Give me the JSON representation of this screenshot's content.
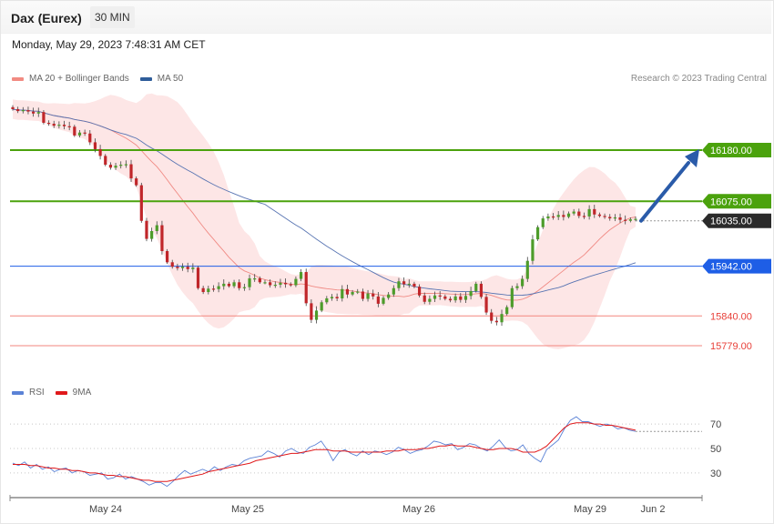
{
  "header": {
    "title": "Dax (Eurex)",
    "interval": "30 MIN"
  },
  "timestamp": "Monday, May 29, 2023 7:48:31 AM CET",
  "legend_main": [
    {
      "label": "MA 20 + Bollinger Bands",
      "color": "#f28b82"
    },
    {
      "label": "MA 50",
      "color": "#2f5d9a"
    }
  ],
  "legend_rsi": [
    {
      "label": "RSI",
      "color": "#5b82d6"
    },
    {
      "label": "9MA",
      "color": "#e0191b"
    }
  ],
  "copyright": "Research © 2023 Trading Central",
  "colors": {
    "green": "#4ba20d",
    "red": "#e8413a",
    "blue": "#1e5ee6",
    "dark": "#2b2b2b",
    "bull": "#4d9c2a",
    "bear": "#c0262a"
  },
  "chart_data": [
    {
      "type": "candlestick",
      "ylim": [
        15700,
        16250
      ],
      "x_labels": [
        "May 24",
        "May 25",
        "May 26",
        "May 29",
        "Jun 2"
      ],
      "levels": [
        {
          "label": "16180.00",
          "value": 16180,
          "style": "resistance"
        },
        {
          "label": "16075.00",
          "value": 16075,
          "style": "resistance"
        },
        {
          "label": "16035.00",
          "value": 16035,
          "style": "last"
        },
        {
          "label": "15942.00",
          "value": 15942,
          "style": "pivot"
        },
        {
          "label": "15840.00",
          "value": 15840,
          "style": "support"
        },
        {
          "label": "15779.00",
          "value": 15779,
          "style": "support"
        }
      ],
      "close": [
        16264,
        16260,
        16262,
        16259,
        16255,
        16258,
        16236,
        16234,
        16230,
        16232,
        16229,
        16228,
        16210,
        16216,
        16214,
        16196,
        16182,
        16168,
        16150,
        16144,
        16148,
        16150,
        16151,
        16122,
        16108,
        16035,
        15998,
        16014,
        16026,
        15973,
        15950,
        15941,
        15938,
        15941,
        15936,
        15939,
        15897,
        15889,
        15896,
        15895,
        15901,
        15906,
        15901,
        15909,
        15897,
        15899,
        15917,
        15917,
        15909,
        15909,
        15903,
        15904,
        15908,
        15905,
        15903,
        15916,
        15930,
        15866,
        15832,
        15851,
        15868,
        15876,
        15879,
        15876,
        15895,
        15884,
        15889,
        15890,
        15875,
        15886,
        15880,
        15865,
        15877,
        15884,
        15897,
        15911,
        15905,
        15906,
        15900,
        15882,
        15869,
        15875,
        15882,
        15880,
        15875,
        15872,
        15880,
        15873,
        15881,
        15891,
        15906,
        15879,
        15847,
        15830,
        15827,
        15844,
        15858,
        15897,
        15901,
        15916,
        15953,
        15997,
        16022,
        16040,
        16044,
        16043,
        16047,
        16043,
        16050,
        16054,
        16045,
        16044,
        16059,
        16048,
        16045,
        16043,
        16040,
        16042,
        16037,
        16035,
        16038,
        16039
      ]
    },
    {
      "type": "line",
      "title": "RSI",
      "ylim": [
        15,
        85
      ],
      "y_ticks": [
        30,
        50,
        70
      ],
      "series": [
        {
          "name": "RSI",
          "values": [
            38,
            36,
            39,
            34,
            37,
            33,
            35,
            31,
            33,
            34,
            30,
            32,
            31,
            28,
            29,
            30,
            25,
            26,
            29,
            25,
            27,
            25,
            23,
            20,
            22,
            22,
            19,
            23,
            28,
            32,
            29,
            31,
            33,
            31,
            35,
            32,
            35,
            37,
            36,
            40,
            42,
            43,
            44,
            48,
            46,
            43,
            48,
            50,
            47,
            46,
            51,
            53,
            56,
            49,
            40,
            47,
            49,
            46,
            44,
            48,
            45,
            48,
            47,
            45,
            47,
            51,
            49,
            46,
            48,
            49,
            52,
            56,
            55,
            53,
            54,
            49,
            51,
            54,
            53,
            50,
            48,
            52,
            57,
            51,
            48,
            49,
            53,
            46,
            42,
            39,
            49,
            53,
            57,
            66,
            73,
            76,
            72,
            72,
            70,
            68,
            70,
            69,
            66,
            67,
            65,
            64
          ]
        },
        {
          "name": "9MA",
          "values": [
            37,
            37,
            37,
            36,
            36,
            35,
            34,
            34,
            33,
            33,
            32,
            32,
            31,
            30,
            30,
            29,
            28,
            28,
            27,
            27,
            26,
            25,
            24,
            24,
            23,
            23,
            23,
            24,
            25,
            26,
            27,
            28,
            29,
            31,
            32,
            33,
            34,
            35,
            36,
            37,
            38,
            40,
            41,
            42,
            43,
            44,
            45,
            46,
            46,
            47,
            48,
            49,
            49,
            49,
            48,
            48,
            48,
            47,
            47,
            47,
            47,
            47,
            47,
            48,
            48,
            48,
            49,
            49,
            49,
            50,
            50,
            51,
            52,
            52,
            53,
            52,
            52,
            52,
            51,
            50,
            49,
            49,
            50,
            50,
            50,
            49,
            47,
            47,
            47,
            49,
            52,
            57,
            62,
            67,
            70,
            71,
            71,
            71,
            70,
            70,
            69,
            69,
            68,
            67,
            66,
            65
          ]
        }
      ]
    }
  ]
}
